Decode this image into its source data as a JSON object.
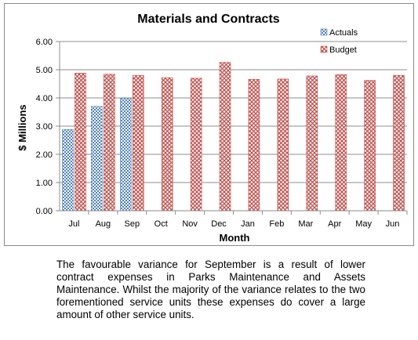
{
  "chart_data": {
    "type": "bar",
    "title": "Materials and Contracts",
    "xlabel": "Month",
    "ylabel": "$ Millions",
    "categories": [
      "Jul",
      "Aug",
      "Sep",
      "Oct",
      "Nov",
      "Dec",
      "Jan",
      "Feb",
      "Mar",
      "Apr",
      "May",
      "Jun"
    ],
    "series": [
      {
        "name": "Actuals",
        "color": "#4f81bd",
        "values": [
          2.88,
          3.7,
          3.99,
          null,
          null,
          null,
          null,
          null,
          null,
          null,
          null,
          null
        ]
      },
      {
        "name": "Budget",
        "color": "#c0504d",
        "values": [
          4.88,
          4.84,
          4.8,
          4.72,
          4.7,
          5.26,
          4.66,
          4.67,
          4.78,
          4.83,
          4.62,
          4.8
        ]
      }
    ],
    "ylim": [
      0,
      6
    ],
    "yticks": [
      "0.00",
      "1.00",
      "2.00",
      "3.00",
      "4.00",
      "5.00",
      "6.00"
    ],
    "grid": true,
    "legend": "top-right"
  },
  "caption": "The favourable variance for September is a result of lower contract expenses in Parks Maintenance and Assets Maintenance. Whilst the majority of the variance relates to the two forementioned service units these expenses do cover a large amount of other service units."
}
